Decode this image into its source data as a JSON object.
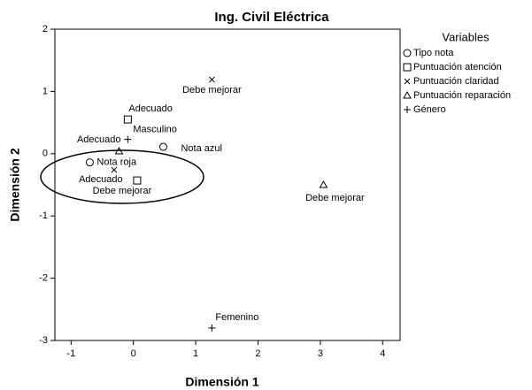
{
  "chart_data": {
    "type": "scatter",
    "title": "Ing. Civil Eléctrica",
    "x_label": "Dimensión 1",
    "y_label": "Dimensión 2",
    "legend_title": "Variables",
    "xlim": [
      -1.26,
      4.28
    ],
    "ylim": [
      -3,
      2
    ],
    "xticks": [
      -1,
      0,
      1,
      2,
      3,
      4
    ],
    "yticks": [
      -3,
      -2,
      -1,
      0,
      1,
      2
    ],
    "legend": "right",
    "series": [
      {
        "name": "Tipo nota",
        "marker": "circle",
        "color": "#000000",
        "x": [
          -0.7,
          0.48
        ],
        "values": [
          -0.14,
          0.11
        ],
        "labels": [
          "Nota roja",
          "Nota azul"
        ]
      },
      {
        "name": "Puntuación atención",
        "marker": "square",
        "color": "#000000",
        "x": [
          -0.09,
          0.06
        ],
        "values": [
          0.55,
          -0.43
        ],
        "labels": [
          "Adecuado",
          "Debe mejorar"
        ]
      },
      {
        "name": "Puntuación claridad",
        "marker": "x",
        "color": "#000000",
        "x": [
          1.26,
          -0.31
        ],
        "values": [
          1.19,
          -0.26
        ],
        "labels": [
          "Debe mejorar",
          "Adecuado"
        ]
      },
      {
        "name": "Puntuación reparación",
        "marker": "triangle",
        "color": "#000000",
        "x": [
          -0.23,
          3.05
        ],
        "values": [
          0.04,
          -0.5
        ],
        "labels": [
          "Adecuado",
          "Debe mejorar"
        ]
      },
      {
        "name": "Género",
        "marker": "plus",
        "color": "#000000",
        "x": [
          -0.09,
          1.26
        ],
        "values": [
          0.23,
          -2.8
        ],
        "labels": [
          "Masculino",
          "Femenino"
        ]
      }
    ]
  }
}
